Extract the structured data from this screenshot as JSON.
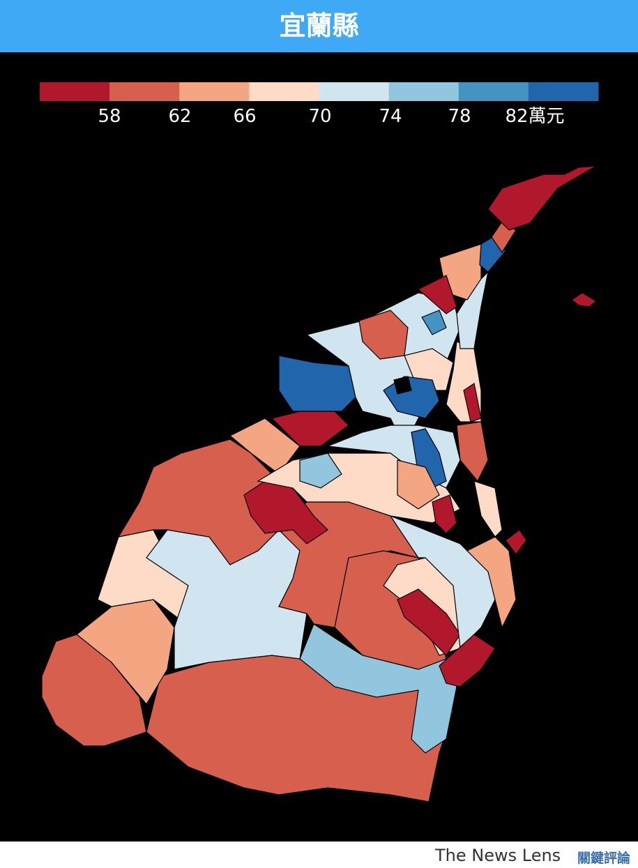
{
  "header": {
    "title": "宜蘭縣"
  },
  "legend": {
    "colors": [
      "#b2182b",
      "#d6604d",
      "#f4a582",
      "#fddbc7",
      "#d1e5f0",
      "#92c5de",
      "#4393c3",
      "#2166ac"
    ],
    "ticks": [
      58,
      62,
      66,
      70,
      74,
      78,
      {
        "value": 82,
        "label": "82萬元"
      }
    ]
  },
  "footer": {
    "brand": "The News Lens",
    "brand_zh": "關鍵評論"
  }
}
